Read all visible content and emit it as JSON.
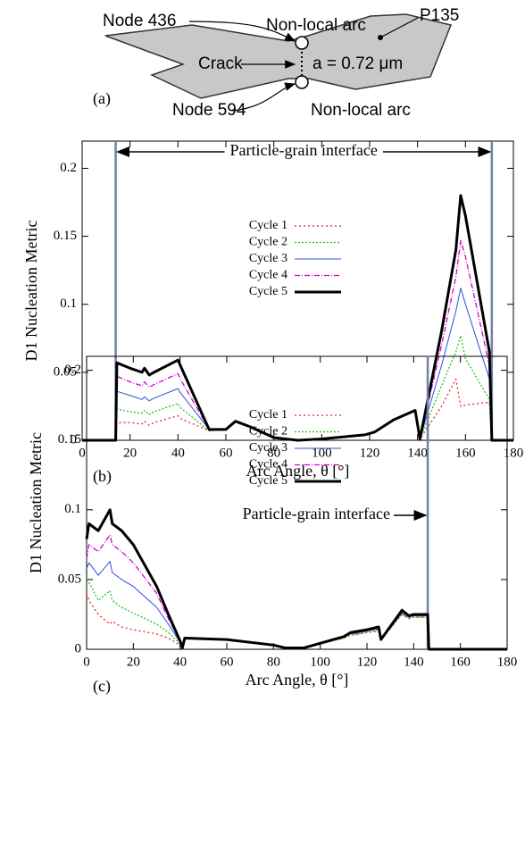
{
  "diagram": {
    "panel_label": "(a)",
    "node_top": "Node 436",
    "node_bottom": "Node 594",
    "arc_top": "Non-local arc",
    "arc_bottom": "Non-local arc",
    "particle": "P135",
    "crack": "Crack",
    "crack_length": "a = 0.72 μm"
  },
  "chart_data": [
    {
      "type": "line",
      "panel_label": "(b)",
      "xlabel": "Arc Angle, θ [°]",
      "ylabel": "D1 Nucleation Metric",
      "annotation": "Particle-grain interface",
      "interface_x": [
        14,
        171
      ],
      "xlim": [
        0,
        180
      ],
      "ylim": [
        0,
        0.22
      ],
      "xticks": [
        0,
        20,
        40,
        60,
        80,
        100,
        120,
        140,
        160,
        180
      ],
      "yticks": [
        0,
        0.05,
        0.1,
        0.15,
        0.2
      ],
      "x": [
        0,
        14,
        14.5,
        20,
        25,
        26,
        28,
        30,
        40,
        41,
        53,
        60,
        64,
        70,
        80,
        90,
        100,
        118,
        122,
        130,
        139,
        141,
        150,
        156,
        158,
        160,
        170,
        171,
        180
      ],
      "series": [
        {
          "name": "Cycle 1",
          "color": "#e8221c",
          "dash": "2 3",
          "width": 1.3,
          "values": [
            0,
            0,
            0.013,
            0.013,
            0.012,
            0.014,
            0.011,
            0.013,
            0.018,
            0.016,
            0.007,
            0.008,
            0.014,
            0.01,
            0.002,
            0,
            0.001,
            0.004,
            0.006,
            0.015,
            0.022,
            0.001,
            0.025,
            0.045,
            0.025,
            0.026,
            0.028,
            0,
            0
          ]
        },
        {
          "name": "Cycle 2",
          "color": "#1ec81e",
          "dash": "2 2",
          "width": 1.3,
          "values": [
            0,
            0,
            0.023,
            0.021,
            0.02,
            0.022,
            0.019,
            0.021,
            0.027,
            0.024,
            0.007,
            0.008,
            0.014,
            0.01,
            0.002,
            0,
            0.001,
            0.004,
            0.006,
            0.015,
            0.022,
            0.001,
            0.04,
            0.065,
            0.077,
            0.06,
            0.03,
            0,
            0
          ]
        },
        {
          "name": "Cycle 3",
          "color": "#2a4fe0",
          "dash": "none",
          "width": 1,
          "values": [
            0,
            0,
            0.036,
            0.033,
            0.03,
            0.032,
            0.029,
            0.031,
            0.038,
            0.035,
            0.008,
            0.008,
            0.014,
            0.01,
            0.002,
            0,
            0.001,
            0.004,
            0.006,
            0.015,
            0.022,
            0.001,
            0.055,
            0.095,
            0.112,
            0.1,
            0.045,
            0,
            0
          ]
        },
        {
          "name": "Cycle 4",
          "color": "#d000d0",
          "dash": "6 2 1 2",
          "width": 1.3,
          "values": [
            0,
            0,
            0.047,
            0.043,
            0.04,
            0.043,
            0.039,
            0.041,
            0.049,
            0.045,
            0.008,
            0.008,
            0.014,
            0.01,
            0.002,
            0,
            0.001,
            0.004,
            0.006,
            0.015,
            0.022,
            0.001,
            0.07,
            0.12,
            0.147,
            0.135,
            0.055,
            0,
            0
          ]
        },
        {
          "name": "Cycle 5",
          "color": "#000000",
          "dash": "none",
          "width": 3,
          "values": [
            0,
            0,
            0.057,
            0.053,
            0.05,
            0.053,
            0.048,
            0.05,
            0.059,
            0.055,
            0.008,
            0.008,
            0.014,
            0.01,
            0.002,
            0,
            0.001,
            0.004,
            0.006,
            0.015,
            0.022,
            0.001,
            0.08,
            0.14,
            0.18,
            0.165,
            0.065,
            0,
            0
          ]
        }
      ]
    },
    {
      "type": "line",
      "panel_label": "(c)",
      "xlabel": "Arc Angle, θ [°]",
      "ylabel": "D1 Nucleation Metric",
      "annotation": "Particle-grain interface",
      "interface_x": [
        146
      ],
      "xlim": [
        0,
        180
      ],
      "ylim": [
        0,
        0.21
      ],
      "xticks": [
        0,
        20,
        40,
        60,
        80,
        100,
        120,
        140,
        160,
        180
      ],
      "yticks": [
        0,
        0.05,
        0.1,
        0.15,
        0.2
      ],
      "x": [
        0,
        1,
        5,
        10,
        11,
        15,
        20,
        30,
        35,
        40,
        41,
        42,
        60,
        80,
        85,
        90,
        93,
        110,
        113,
        120,
        125,
        126,
        135,
        138,
        140,
        146,
        146.5,
        180
      ],
      "series": [
        {
          "name": "Cycle 1",
          "color": "#e8221c",
          "dash": "2 3",
          "width": 1.3,
          "values": [
            0.04,
            0.035,
            0.025,
            0.018,
            0.02,
            0.016,
            0.014,
            0.011,
            0.008,
            0.003,
            0.001,
            0.008,
            0.007,
            0.003,
            0.001,
            0.001,
            0.001,
            0.008,
            0.01,
            0.012,
            0.013,
            0.007,
            0.025,
            0.022,
            0.023,
            0.023,
            0,
            0
          ]
        },
        {
          "name": "Cycle 2",
          "color": "#1ec81e",
          "dash": "2 2",
          "width": 1.3,
          "values": [
            0.05,
            0.048,
            0.035,
            0.042,
            0.035,
            0.03,
            0.026,
            0.018,
            0.012,
            0.004,
            0.001,
            0.008,
            0.007,
            0.003,
            0.001,
            0.001,
            0.001,
            0.008,
            0.01,
            0.012,
            0.014,
            0.007,
            0.025,
            0.022,
            0.023,
            0.023,
            0,
            0
          ]
        },
        {
          "name": "Cycle 3",
          "color": "#2a4fe0",
          "dash": "none",
          "width": 1,
          "values": [
            0.058,
            0.062,
            0.053,
            0.063,
            0.055,
            0.05,
            0.045,
            0.03,
            0.018,
            0.005,
            0.001,
            0.008,
            0.007,
            0.003,
            0.001,
            0.001,
            0.001,
            0.009,
            0.011,
            0.013,
            0.015,
            0.007,
            0.026,
            0.023,
            0.024,
            0.024,
            0,
            0
          ]
        },
        {
          "name": "Cycle 4",
          "color": "#d000d0",
          "dash": "6 2 1 2",
          "width": 1.3,
          "values": [
            0.065,
            0.075,
            0.07,
            0.082,
            0.075,
            0.07,
            0.062,
            0.04,
            0.022,
            0.006,
            0.001,
            0.008,
            0.007,
            0.003,
            0.001,
            0.001,
            0.001,
            0.009,
            0.011,
            0.013,
            0.015,
            0.007,
            0.027,
            0.023,
            0.024,
            0.024,
            0,
            0
          ]
        },
        {
          "name": "Cycle 5",
          "color": "#000000",
          "dash": "none",
          "width": 3,
          "values": [
            0.079,
            0.09,
            0.085,
            0.1,
            0.09,
            0.085,
            0.075,
            0.045,
            0.025,
            0.006,
            0.001,
            0.008,
            0.007,
            0.003,
            0.001,
            0.001,
            0.001,
            0.009,
            0.012,
            0.014,
            0.016,
            0.007,
            0.028,
            0.024,
            0.025,
            0.025,
            0,
            0
          ]
        }
      ]
    }
  ]
}
